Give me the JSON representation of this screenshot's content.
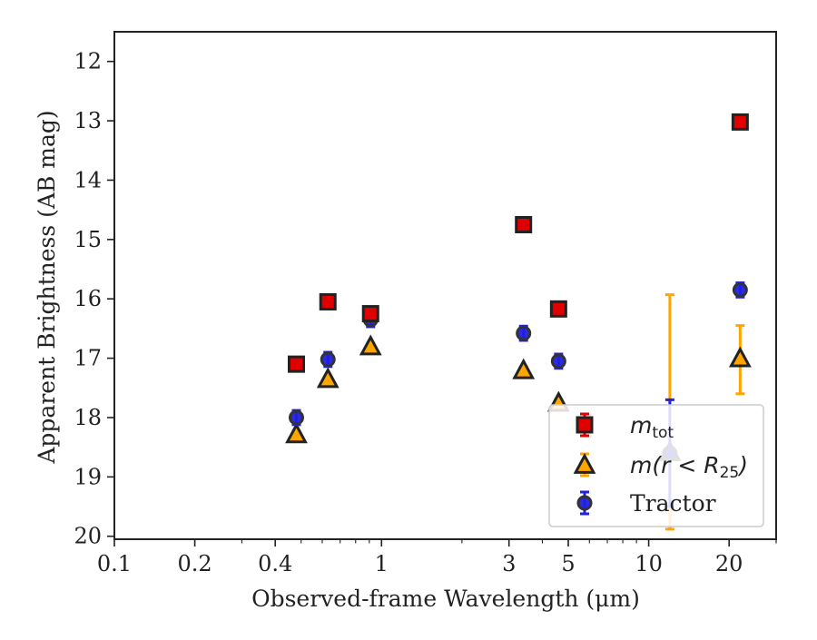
{
  "chart_data": {
    "type": "scatter",
    "xlabel": "Observed-frame Wavelength (μm)",
    "ylabel": "Apparent Brightness (AB mag)",
    "xscale": "log",
    "xlim": [
      0.1,
      30
    ],
    "ylim": [
      20.05,
      11.5
    ],
    "y_inverted": true,
    "grid": false,
    "legend_position": "lower-right",
    "x_ticks": [
      {
        "value": 0.1,
        "label": "0.1"
      },
      {
        "value": 0.2,
        "label": "0.2"
      },
      {
        "value": 0.4,
        "label": "0.4"
      },
      {
        "value": 1,
        "label": "1"
      },
      {
        "value": 3,
        "label": "3"
      },
      {
        "value": 5,
        "label": "5"
      },
      {
        "value": 10,
        "label": "10"
      },
      {
        "value": 20,
        "label": "20"
      }
    ],
    "y_ticks": [
      {
        "value": 12,
        "label": "12"
      },
      {
        "value": 13,
        "label": "13"
      },
      {
        "value": 14,
        "label": "14"
      },
      {
        "value": 15,
        "label": "15"
      },
      {
        "value": 16,
        "label": "16"
      },
      {
        "value": 17,
        "label": "17"
      },
      {
        "value": 18,
        "label": "18"
      },
      {
        "value": 19,
        "label": "19"
      },
      {
        "value": 20,
        "label": "20"
      }
    ],
    "series": [
      {
        "name": "m_tot",
        "legend_main": "m",
        "legend_sub": "tot",
        "marker": "square",
        "color": "#e00000",
        "edge": "#222222",
        "points": [
          {
            "x": 0.48,
            "y": 17.1,
            "err": 0.05
          },
          {
            "x": 0.63,
            "y": 16.05,
            "err": 0.05
          },
          {
            "x": 0.91,
            "y": 16.25,
            "err": 0.05
          },
          {
            "x": 3.4,
            "y": 14.75,
            "err": 0.05
          },
          {
            "x": 4.6,
            "y": 16.17,
            "err": 0.05
          },
          {
            "x": 22,
            "y": 13.02,
            "err": 0.05
          }
        ]
      },
      {
        "name": "m(r < R25)",
        "legend_main": "m(r < R",
        "legend_sub": "25",
        "legend_tail": ")",
        "marker": "triangle",
        "color": "#ffa500",
        "edge": "#222222",
        "points": [
          {
            "x": 0.48,
            "y": 18.28,
            "err": 0.05
          },
          {
            "x": 0.63,
            "y": 17.35,
            "err": 0.05
          },
          {
            "x": 0.91,
            "y": 16.8,
            "err": 0.05
          },
          {
            "x": 3.4,
            "y": 17.2,
            "err": 0.05
          },
          {
            "x": 4.6,
            "y": 17.75,
            "err": 0.05
          },
          {
            "x": 12,
            "y": 18.58,
            "err_low": 2.65,
            "err_high": 1.3
          },
          {
            "x": 22,
            "y": 17.0,
            "err_low": 0.55,
            "err_high": 0.6
          }
        ]
      },
      {
        "name": "Tractor",
        "marker": "circle",
        "color": "#2020e0",
        "edge": "#333333",
        "points": [
          {
            "x": 0.48,
            "y": 18.0,
            "err": 0.12
          },
          {
            "x": 0.63,
            "y": 17.02,
            "err": 0.12
          },
          {
            "x": 0.91,
            "y": 16.35,
            "err": 0.12
          },
          {
            "x": 3.4,
            "y": 16.58,
            "err": 0.12
          },
          {
            "x": 4.6,
            "y": 17.05,
            "err": 0.12
          },
          {
            "x": 12,
            "y": 18.6,
            "err": 0.9
          },
          {
            "x": 22,
            "y": 15.85,
            "err": 0.12
          }
        ]
      }
    ]
  }
}
